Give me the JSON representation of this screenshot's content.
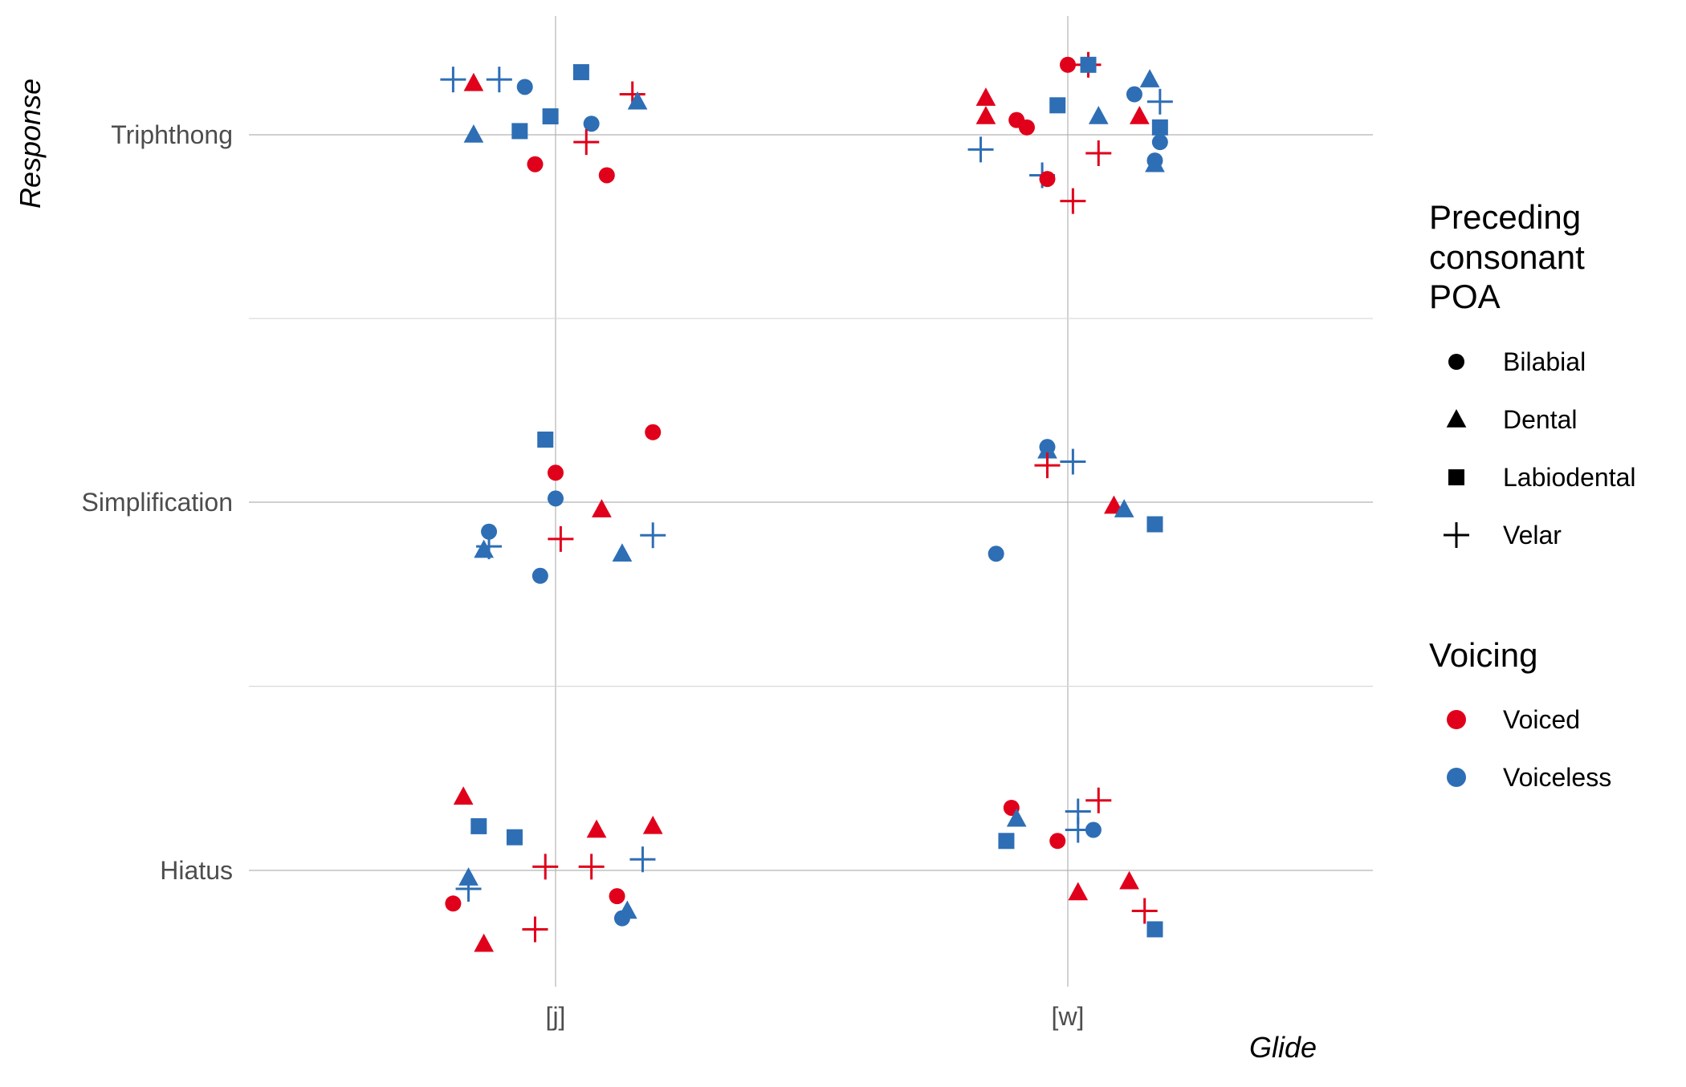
{
  "chart_data": {
    "type": "scatter",
    "jitter": true,
    "xlabel": "Glide",
    "ylabel": "Response",
    "x_categories": [
      "[j]",
      "[w]"
    ],
    "y_categories": [
      "Hiatus",
      "Simplification",
      "Triphthong"
    ],
    "grid": true,
    "legend_position": "right",
    "legend": {
      "shape_title": [
        "Preceding",
        "consonant",
        "POA"
      ],
      "shapes": [
        {
          "key": "Bilabial",
          "label": "Bilabial",
          "icon": "circle"
        },
        {
          "key": "Dental",
          "label": "Dental",
          "icon": "triangle"
        },
        {
          "key": "Labiodental",
          "label": "Labiodental",
          "icon": "square"
        },
        {
          "key": "Velar",
          "label": "Velar",
          "icon": "plus"
        }
      ],
      "color_title": "Voicing",
      "colors": [
        {
          "key": "Voiced",
          "label": "Voiced",
          "color": "#e0001b"
        },
        {
          "key": "Voiceless",
          "label": "Voiceless",
          "color": "#2e6eb5"
        }
      ]
    },
    "points": [
      {
        "x": "[j]",
        "y": "Triphthong",
        "dx": -0.2,
        "dy": 0.15,
        "poa": "Velar",
        "voicing": "Voiceless"
      },
      {
        "x": "[j]",
        "y": "Triphthong",
        "dx": -0.16,
        "dy": 0.14,
        "poa": "Dental",
        "voicing": "Voiced"
      },
      {
        "x": "[j]",
        "y": "Triphthong",
        "dx": -0.11,
        "dy": 0.15,
        "poa": "Velar",
        "voicing": "Voiceless"
      },
      {
        "x": "[j]",
        "y": "Triphthong",
        "dx": -0.06,
        "dy": 0.13,
        "poa": "Bilabial",
        "voicing": "Voiceless"
      },
      {
        "x": "[j]",
        "y": "Triphthong",
        "dx": 0.05,
        "dy": 0.17,
        "poa": "Labiodental",
        "voicing": "Voiceless"
      },
      {
        "x": "[j]",
        "y": "Triphthong",
        "dx": 0.15,
        "dy": 0.11,
        "poa": "Velar",
        "voicing": "Voiced"
      },
      {
        "x": "[j]",
        "y": "Triphthong",
        "dx": 0.16,
        "dy": 0.09,
        "poa": "Dental",
        "voicing": "Voiceless"
      },
      {
        "x": "[j]",
        "y": "Triphthong",
        "dx": -0.01,
        "dy": 0.05,
        "poa": "Labiodental",
        "voicing": "Voiceless"
      },
      {
        "x": "[j]",
        "y": "Triphthong",
        "dx": -0.07,
        "dy": 0.01,
        "poa": "Labiodental",
        "voicing": "Voiceless"
      },
      {
        "x": "[j]",
        "y": "Triphthong",
        "dx": -0.16,
        "dy": 0.0,
        "poa": "Dental",
        "voicing": "Voiceless"
      },
      {
        "x": "[j]",
        "y": "Triphthong",
        "dx": 0.07,
        "dy": 0.03,
        "poa": "Bilabial",
        "voicing": "Voiceless"
      },
      {
        "x": "[j]",
        "y": "Triphthong",
        "dx": 0.06,
        "dy": -0.02,
        "poa": "Velar",
        "voicing": "Voiced"
      },
      {
        "x": "[j]",
        "y": "Triphthong",
        "dx": -0.04,
        "dy": -0.08,
        "poa": "Bilabial",
        "voicing": "Voiced"
      },
      {
        "x": "[j]",
        "y": "Triphthong",
        "dx": 0.1,
        "dy": -0.11,
        "poa": "Bilabial",
        "voicing": "Voiced"
      },
      {
        "x": "[w]",
        "y": "Triphthong",
        "dx": 0.0,
        "dy": 0.19,
        "poa": "Bilabial",
        "voicing": "Voiced"
      },
      {
        "x": "[w]",
        "y": "Triphthong",
        "dx": 0.04,
        "dy": 0.19,
        "poa": "Velar",
        "voicing": "Voiced"
      },
      {
        "x": "[w]",
        "y": "Triphthong",
        "dx": 0.04,
        "dy": 0.19,
        "poa": "Labiodental",
        "voicing": "Voiceless"
      },
      {
        "x": "[w]",
        "y": "Triphthong",
        "dx": 0.16,
        "dy": 0.15,
        "poa": "Dental",
        "voicing": "Voiceless"
      },
      {
        "x": "[w]",
        "y": "Triphthong",
        "dx": 0.13,
        "dy": 0.11,
        "poa": "Bilabial",
        "voicing": "Voiceless"
      },
      {
        "x": "[w]",
        "y": "Triphthong",
        "dx": 0.18,
        "dy": 0.09,
        "poa": "Velar",
        "voicing": "Voiceless"
      },
      {
        "x": "[w]",
        "y": "Triphthong",
        "dx": -0.16,
        "dy": 0.1,
        "poa": "Dental",
        "voicing": "Voiced"
      },
      {
        "x": "[w]",
        "y": "Triphthong",
        "dx": -0.16,
        "dy": 0.05,
        "poa": "Dental",
        "voicing": "Voiced"
      },
      {
        "x": "[w]",
        "y": "Triphthong",
        "dx": -0.1,
        "dy": 0.04,
        "poa": "Bilabial",
        "voicing": "Voiced"
      },
      {
        "x": "[w]",
        "y": "Triphthong",
        "dx": -0.08,
        "dy": 0.02,
        "poa": "Bilabial",
        "voicing": "Voiced"
      },
      {
        "x": "[w]",
        "y": "Triphthong",
        "dx": -0.02,
        "dy": 0.08,
        "poa": "Labiodental",
        "voicing": "Voiceless"
      },
      {
        "x": "[w]",
        "y": "Triphthong",
        "dx": 0.06,
        "dy": 0.05,
        "poa": "Dental",
        "voicing": "Voiceless"
      },
      {
        "x": "[w]",
        "y": "Triphthong",
        "dx": 0.14,
        "dy": 0.05,
        "poa": "Dental",
        "voicing": "Voiced"
      },
      {
        "x": "[w]",
        "y": "Triphthong",
        "dx": 0.18,
        "dy": 0.02,
        "poa": "Labiodental",
        "voicing": "Voiceless"
      },
      {
        "x": "[w]",
        "y": "Triphthong",
        "dx": 0.18,
        "dy": -0.02,
        "poa": "Bilabial",
        "voicing": "Voiceless"
      },
      {
        "x": "[w]",
        "y": "Triphthong",
        "dx": -0.17,
        "dy": -0.04,
        "poa": "Velar",
        "voicing": "Voiceless"
      },
      {
        "x": "[w]",
        "y": "Triphthong",
        "dx": 0.06,
        "dy": -0.05,
        "poa": "Velar",
        "voicing": "Voiced"
      },
      {
        "x": "[w]",
        "y": "Triphthong",
        "dx": -0.05,
        "dy": -0.11,
        "poa": "Velar",
        "voicing": "Voiceless"
      },
      {
        "x": "[w]",
        "y": "Triphthong",
        "dx": -0.04,
        "dy": -0.12,
        "poa": "Bilabial",
        "voicing": "Voiced"
      },
      {
        "x": "[w]",
        "y": "Triphthong",
        "dx": 0.17,
        "dy": -0.07,
        "poa": "Bilabial",
        "voicing": "Voiceless"
      },
      {
        "x": "[w]",
        "y": "Triphthong",
        "dx": 0.17,
        "dy": -0.08,
        "poa": "Dental",
        "voicing": "Voiceless"
      },
      {
        "x": "[w]",
        "y": "Triphthong",
        "dx": 0.01,
        "dy": -0.18,
        "poa": "Velar",
        "voicing": "Voiced"
      },
      {
        "x": "[j]",
        "y": "Simplification",
        "dx": -0.02,
        "dy": 0.17,
        "poa": "Labiodental",
        "voicing": "Voiceless"
      },
      {
        "x": "[j]",
        "y": "Simplification",
        "dx": 0.19,
        "dy": 0.19,
        "poa": "Bilabial",
        "voicing": "Voiced"
      },
      {
        "x": "[j]",
        "y": "Simplification",
        "dx": 0.0,
        "dy": 0.08,
        "poa": "Bilabial",
        "voicing": "Voiced"
      },
      {
        "x": "[j]",
        "y": "Simplification",
        "dx": 0.0,
        "dy": 0.01,
        "poa": "Bilabial",
        "voicing": "Voiceless"
      },
      {
        "x": "[j]",
        "y": "Simplification",
        "dx": 0.09,
        "dy": -0.02,
        "poa": "Dental",
        "voicing": "Voiced"
      },
      {
        "x": "[j]",
        "y": "Simplification",
        "dx": -0.13,
        "dy": -0.08,
        "poa": "Bilabial",
        "voicing": "Voiceless"
      },
      {
        "x": "[j]",
        "y": "Simplification",
        "dx": -0.14,
        "dy": -0.13,
        "poa": "Dental",
        "voicing": "Voiceless"
      },
      {
        "x": "[j]",
        "y": "Simplification",
        "dx": -0.13,
        "dy": -0.12,
        "poa": "Velar",
        "voicing": "Voiceless"
      },
      {
        "x": "[j]",
        "y": "Simplification",
        "dx": 0.01,
        "dy": -0.1,
        "poa": "Velar",
        "voicing": "Voiced"
      },
      {
        "x": "[j]",
        "y": "Simplification",
        "dx": 0.19,
        "dy": -0.09,
        "poa": "Velar",
        "voicing": "Voiceless"
      },
      {
        "x": "[j]",
        "y": "Simplification",
        "dx": 0.13,
        "dy": -0.14,
        "poa": "Dental",
        "voicing": "Voiceless"
      },
      {
        "x": "[j]",
        "y": "Simplification",
        "dx": -0.03,
        "dy": -0.2,
        "poa": "Bilabial",
        "voicing": "Voiceless"
      },
      {
        "x": "[w]",
        "y": "Simplification",
        "dx": -0.04,
        "dy": 0.15,
        "poa": "Bilabial",
        "voicing": "Voiceless"
      },
      {
        "x": "[w]",
        "y": "Simplification",
        "dx": -0.04,
        "dy": 0.14,
        "poa": "Dental",
        "voicing": "Voiceless"
      },
      {
        "x": "[w]",
        "y": "Simplification",
        "dx": -0.04,
        "dy": 0.1,
        "poa": "Velar",
        "voicing": "Voiced"
      },
      {
        "x": "[w]",
        "y": "Simplification",
        "dx": 0.01,
        "dy": 0.11,
        "poa": "Velar",
        "voicing": "Voiceless"
      },
      {
        "x": "[w]",
        "y": "Simplification",
        "dx": 0.09,
        "dy": -0.01,
        "poa": "Dental",
        "voicing": "Voiced"
      },
      {
        "x": "[w]",
        "y": "Simplification",
        "dx": 0.11,
        "dy": -0.02,
        "poa": "Dental",
        "voicing": "Voiceless"
      },
      {
        "x": "[w]",
        "y": "Simplification",
        "dx": 0.17,
        "dy": -0.06,
        "poa": "Labiodental",
        "voicing": "Voiceless"
      },
      {
        "x": "[w]",
        "y": "Simplification",
        "dx": -0.14,
        "dy": -0.14,
        "poa": "Bilabial",
        "voicing": "Voiceless"
      },
      {
        "x": "[j]",
        "y": "Hiatus",
        "dx": -0.18,
        "dy": 0.2,
        "poa": "Dental",
        "voicing": "Voiced"
      },
      {
        "x": "[j]",
        "y": "Hiatus",
        "dx": -0.15,
        "dy": 0.12,
        "poa": "Labiodental",
        "voicing": "Voiceless"
      },
      {
        "x": "[j]",
        "y": "Hiatus",
        "dx": -0.08,
        "dy": 0.09,
        "poa": "Labiodental",
        "voicing": "Voiceless"
      },
      {
        "x": "[j]",
        "y": "Hiatus",
        "dx": 0.08,
        "dy": 0.11,
        "poa": "Dental",
        "voicing": "Voiced"
      },
      {
        "x": "[j]",
        "y": "Hiatus",
        "dx": 0.19,
        "dy": 0.12,
        "poa": "Dental",
        "voicing": "Voiced"
      },
      {
        "x": "[j]",
        "y": "Hiatus",
        "dx": -0.17,
        "dy": -0.02,
        "poa": "Dental",
        "voicing": "Voiceless"
      },
      {
        "x": "[j]",
        "y": "Hiatus",
        "dx": -0.17,
        "dy": -0.05,
        "poa": "Velar",
        "voicing": "Voiceless"
      },
      {
        "x": "[j]",
        "y": "Hiatus",
        "dx": -0.02,
        "dy": 0.01,
        "poa": "Velar",
        "voicing": "Voiced"
      },
      {
        "x": "[j]",
        "y": "Hiatus",
        "dx": 0.07,
        "dy": 0.01,
        "poa": "Velar",
        "voicing": "Voiced"
      },
      {
        "x": "[j]",
        "y": "Hiatus",
        "dx": 0.17,
        "dy": 0.03,
        "poa": "Velar",
        "voicing": "Voiceless"
      },
      {
        "x": "[j]",
        "y": "Hiatus",
        "dx": -0.2,
        "dy": -0.09,
        "poa": "Bilabial",
        "voicing": "Voiced"
      },
      {
        "x": "[j]",
        "y": "Hiatus",
        "dx": 0.12,
        "dy": -0.07,
        "poa": "Bilabial",
        "voicing": "Voiced"
      },
      {
        "x": "[j]",
        "y": "Hiatus",
        "dx": 0.14,
        "dy": -0.11,
        "poa": "Dental",
        "voicing": "Voiceless"
      },
      {
        "x": "[j]",
        "y": "Hiatus",
        "dx": 0.13,
        "dy": -0.13,
        "poa": "Bilabial",
        "voicing": "Voiceless"
      },
      {
        "x": "[j]",
        "y": "Hiatus",
        "dx": -0.04,
        "dy": -0.16,
        "poa": "Velar",
        "voicing": "Voiced"
      },
      {
        "x": "[j]",
        "y": "Hiatus",
        "dx": -0.14,
        "dy": -0.2,
        "poa": "Dental",
        "voicing": "Voiced"
      },
      {
        "x": "[w]",
        "y": "Hiatus",
        "dx": -0.11,
        "dy": 0.17,
        "poa": "Bilabial",
        "voicing": "Voiced"
      },
      {
        "x": "[w]",
        "y": "Hiatus",
        "dx": -0.1,
        "dy": 0.14,
        "poa": "Dental",
        "voicing": "Voiceless"
      },
      {
        "x": "[w]",
        "y": "Hiatus",
        "dx": -0.12,
        "dy": 0.08,
        "poa": "Labiodental",
        "voicing": "Voiceless"
      },
      {
        "x": "[w]",
        "y": "Hiatus",
        "dx": -0.02,
        "dy": 0.08,
        "poa": "Bilabial",
        "voicing": "Voiced"
      },
      {
        "x": "[w]",
        "y": "Hiatus",
        "dx": 0.02,
        "dy": 0.16,
        "poa": "Velar",
        "voicing": "Voiceless"
      },
      {
        "x": "[w]",
        "y": "Hiatus",
        "dx": 0.02,
        "dy": 0.11,
        "poa": "Velar",
        "voicing": "Voiceless"
      },
      {
        "x": "[w]",
        "y": "Hiatus",
        "dx": 0.05,
        "dy": 0.11,
        "poa": "Bilabial",
        "voicing": "Voiceless"
      },
      {
        "x": "[w]",
        "y": "Hiatus",
        "dx": 0.06,
        "dy": 0.19,
        "poa": "Velar",
        "voicing": "Voiced"
      },
      {
        "x": "[w]",
        "y": "Hiatus",
        "dx": 0.02,
        "dy": -0.06,
        "poa": "Dental",
        "voicing": "Voiced"
      },
      {
        "x": "[w]",
        "y": "Hiatus",
        "dx": 0.12,
        "dy": -0.03,
        "poa": "Dental",
        "voicing": "Voiced"
      },
      {
        "x": "[w]",
        "y": "Hiatus",
        "dx": 0.15,
        "dy": -0.11,
        "poa": "Velar",
        "voicing": "Voiced"
      },
      {
        "x": "[w]",
        "y": "Hiatus",
        "dx": 0.17,
        "dy": -0.16,
        "poa": "Labiodental",
        "voicing": "Voiceless"
      }
    ]
  }
}
